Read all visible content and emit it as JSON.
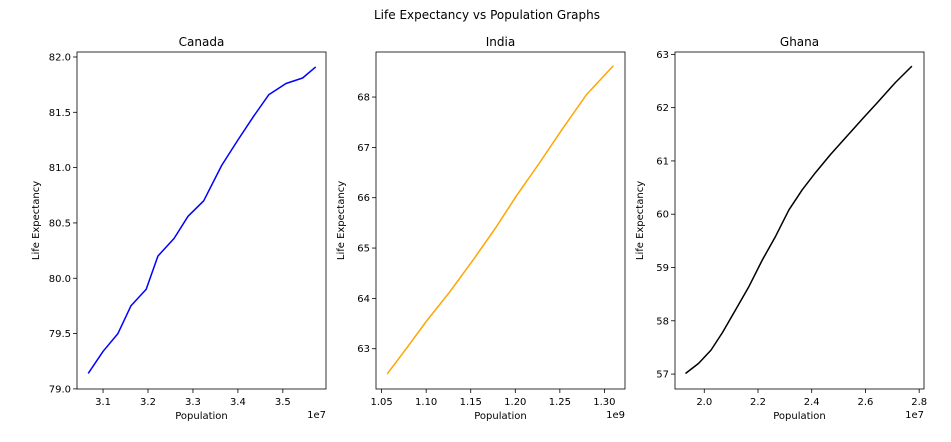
{
  "figure": {
    "title": "Life Expectancy vs Population Graphs"
  },
  "chart_data": [
    {
      "type": "line",
      "title": "Canada",
      "xlabel": "Population",
      "ylabel": "Life Expectancy",
      "x_offset_label": "1e7",
      "color": "#0000ff",
      "xlim": [
        3.042,
        3.596
      ],
      "ylim": [
        78.999,
        82.045
      ],
      "xticks": [
        3.1,
        3.2,
        3.3,
        3.4,
        3.5
      ],
      "xtick_labels": [
        "3.1",
        "3.2",
        "3.3",
        "3.4",
        "3.5"
      ],
      "yticks": [
        79.0,
        79.5,
        80.0,
        80.5,
        81.0,
        81.5,
        82.0
      ],
      "ytick_labels": [
        "79.0",
        "79.5",
        "80.0",
        "80.5",
        "81.0",
        "81.5",
        "82.0"
      ],
      "x": [
        3.067,
        3.1,
        3.133,
        3.162,
        3.196,
        3.222,
        3.258,
        3.289,
        3.324,
        3.364,
        3.4,
        3.436,
        3.469,
        3.507,
        3.544,
        3.573
      ],
      "y": [
        79.14,
        79.34,
        79.5,
        79.75,
        79.9,
        80.2,
        80.36,
        80.56,
        80.7,
        81.02,
        81.25,
        81.47,
        81.66,
        81.76,
        81.81,
        81.91
      ]
    },
    {
      "type": "line",
      "title": "India",
      "xlabel": "Population",
      "ylabel": "Life Expectancy",
      "x_offset_label": "1e9",
      "color": "#ffa500",
      "xlim": [
        1.0437,
        1.3231
      ],
      "ylim": [
        62.2,
        68.895
      ],
      "xticks": [
        1.05,
        1.1,
        1.15,
        1.2,
        1.25,
        1.3
      ],
      "xtick_labels": [
        "1.05",
        "1.10",
        "1.15",
        "1.20",
        "1.25",
        "1.30"
      ],
      "yticks": [
        63,
        64,
        65,
        66,
        67,
        68
      ],
      "ytick_labels": [
        "63",
        "64",
        "65",
        "66",
        "67",
        "68"
      ],
      "x": [
        1.0563,
        1.078,
        1.1,
        1.127,
        1.153,
        1.179,
        1.201,
        1.227,
        1.253,
        1.28,
        1.31
      ],
      "y": [
        62.5,
        63.01,
        63.54,
        64.14,
        64.77,
        65.43,
        66.03,
        66.69,
        67.37,
        68.05,
        68.62
      ]
    },
    {
      "type": "line",
      "title": "Ghana",
      "xlabel": "Population",
      "ylabel": "Life Expectancy",
      "x_offset_label": "1e7",
      "color": "#000000",
      "xlim": [
        1.891,
        2.818
      ],
      "ylim": [
        56.72,
        63.044
      ],
      "xticks": [
        2.0,
        2.2,
        2.4,
        2.6,
        2.8
      ],
      "xtick_labels": [
        "2.0",
        "2.2",
        "2.4",
        "2.6",
        "2.8"
      ],
      "yticks": [
        57,
        58,
        59,
        60,
        61,
        62,
        63
      ],
      "ytick_labels": [
        "57",
        "58",
        "59",
        "60",
        "61",
        "62",
        "63"
      ],
      "x": [
        1.93,
        1.979,
        2.025,
        2.068,
        2.117,
        2.167,
        2.216,
        2.266,
        2.315,
        2.365,
        2.414,
        2.47,
        2.525,
        2.587,
        2.649,
        2.711,
        2.773
      ],
      "y": [
        57.01,
        57.2,
        57.45,
        57.78,
        58.21,
        58.65,
        59.14,
        59.59,
        60.08,
        60.46,
        60.78,
        61.12,
        61.43,
        61.78,
        62.12,
        62.47,
        62.78
      ]
    }
  ]
}
